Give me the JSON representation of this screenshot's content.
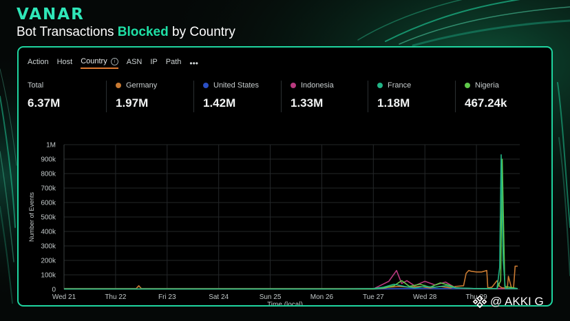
{
  "brand": "VANAR",
  "headline": {
    "prefix": "Bot Transactions ",
    "highlight": "Blocked",
    "suffix": " by Country"
  },
  "tabs": [
    "Action",
    "Host",
    "Country",
    "ASN",
    "IP",
    "Path"
  ],
  "active_tab": "Country",
  "more_label": "•••",
  "stats": [
    {
      "label": "Total",
      "value": "6.37M",
      "color": ""
    },
    {
      "label": "Germany",
      "value": "1.97M",
      "color": "#c97a32"
    },
    {
      "label": "United States",
      "value": "1.42M",
      "color": "#2a4fc4"
    },
    {
      "label": "Indonesia",
      "value": "1.33M",
      "color": "#b9397f"
    },
    {
      "label": "France",
      "value": "1.18M",
      "color": "#21b486"
    },
    {
      "label": "Nigeria",
      "value": "467.24k",
      "color": "#5fc94a"
    }
  ],
  "chart_data": {
    "type": "line",
    "xlabel": "Time (local)",
    "ylabel": "Number of Events",
    "x_ticks": [
      "Wed 21",
      "Thu 22",
      "Fri 23",
      "Sat 24",
      "Sun 25",
      "Mon 26",
      "Tue 27",
      "Wed 28",
      "Thu 29"
    ],
    "y_ticks": [
      "0",
      "100k",
      "200k",
      "300k",
      "400k",
      "500k",
      "600k",
      "700k",
      "800k",
      "900k",
      "1M"
    ],
    "ylim": [
      0,
      1000000
    ],
    "xlim": [
      0,
      8.84
    ],
    "grid": true,
    "series": [
      {
        "name": "Germany",
        "color": "#c97a32",
        "x": [
          0,
          1.2,
          1.4,
          1.45,
          1.5,
          2.5,
          5,
          6,
          6.2,
          6.3,
          6.5,
          6.7,
          6.9,
          7.1,
          7.3,
          7.5,
          7.6,
          7.75,
          7.8,
          7.85,
          7.9,
          8.0,
          8.1,
          8.2,
          8.22,
          8.3,
          8.4,
          8.45,
          8.5,
          8.55,
          8.6,
          8.62,
          8.68,
          8.72,
          8.75,
          8.8
        ],
        "y": [
          5000,
          5000,
          5000,
          25000,
          5000,
          5000,
          5000,
          5000,
          8000,
          15000,
          20000,
          15000,
          20000,
          10000,
          20000,
          10000,
          20000,
          25000,
          110000,
          130000,
          125000,
          120000,
          120000,
          130000,
          10000,
          15000,
          60000,
          20000,
          10000,
          10000,
          10000,
          90000,
          10000,
          10000,
          160000,
          160000
        ]
      },
      {
        "name": "United States",
        "color": "#2a4fc4",
        "x": [
          0,
          6,
          6.5,
          7,
          7.5,
          8,
          8.5,
          8.8
        ],
        "y": [
          2000,
          2000,
          5000,
          5000,
          5000,
          5000,
          5000,
          5000
        ]
      },
      {
        "name": "Indonesia",
        "color": "#b9397f",
        "x": [
          0,
          6,
          6.1,
          6.3,
          6.45,
          6.55,
          6.65,
          6.8,
          7.0,
          7.2,
          7.4,
          7.6,
          7.8,
          8.0,
          8.5,
          8.8
        ],
        "y": [
          3000,
          3000,
          20000,
          55000,
          130000,
          40000,
          60000,
          25000,
          55000,
          30000,
          50000,
          10000,
          5000,
          5000,
          5000,
          5000
        ],
        "style": "dashed"
      },
      {
        "name": "France",
        "color": "#21b486",
        "x": [
          0,
          5.5,
          6.0,
          6.2,
          6.4,
          6.6,
          6.8,
          7.0,
          7.2,
          7.4,
          7.6,
          8.0,
          8.4,
          8.45,
          8.48,
          8.52,
          8.56,
          8.6,
          8.7,
          8.8
        ],
        "y": [
          3000,
          3000,
          5000,
          15000,
          35000,
          20000,
          10000,
          20000,
          15000,
          25000,
          10000,
          5000,
          5000,
          150000,
          930000,
          200000,
          5000,
          5000,
          5000,
          5000
        ]
      },
      {
        "name": "Nigeria",
        "color": "#5fc94a",
        "x": [
          0,
          6,
          6.2,
          6.4,
          6.55,
          6.7,
          6.9,
          7.1,
          7.3,
          7.5,
          7.6,
          8.0,
          8.4,
          8.47,
          8.5,
          8.55,
          8.8
        ],
        "y": [
          2000,
          2000,
          10000,
          25000,
          60000,
          20000,
          35000,
          15000,
          45000,
          25000,
          10000,
          5000,
          5000,
          60000,
          900000,
          20000,
          5000
        ]
      }
    ]
  },
  "watermark": "@ AKKI G"
}
